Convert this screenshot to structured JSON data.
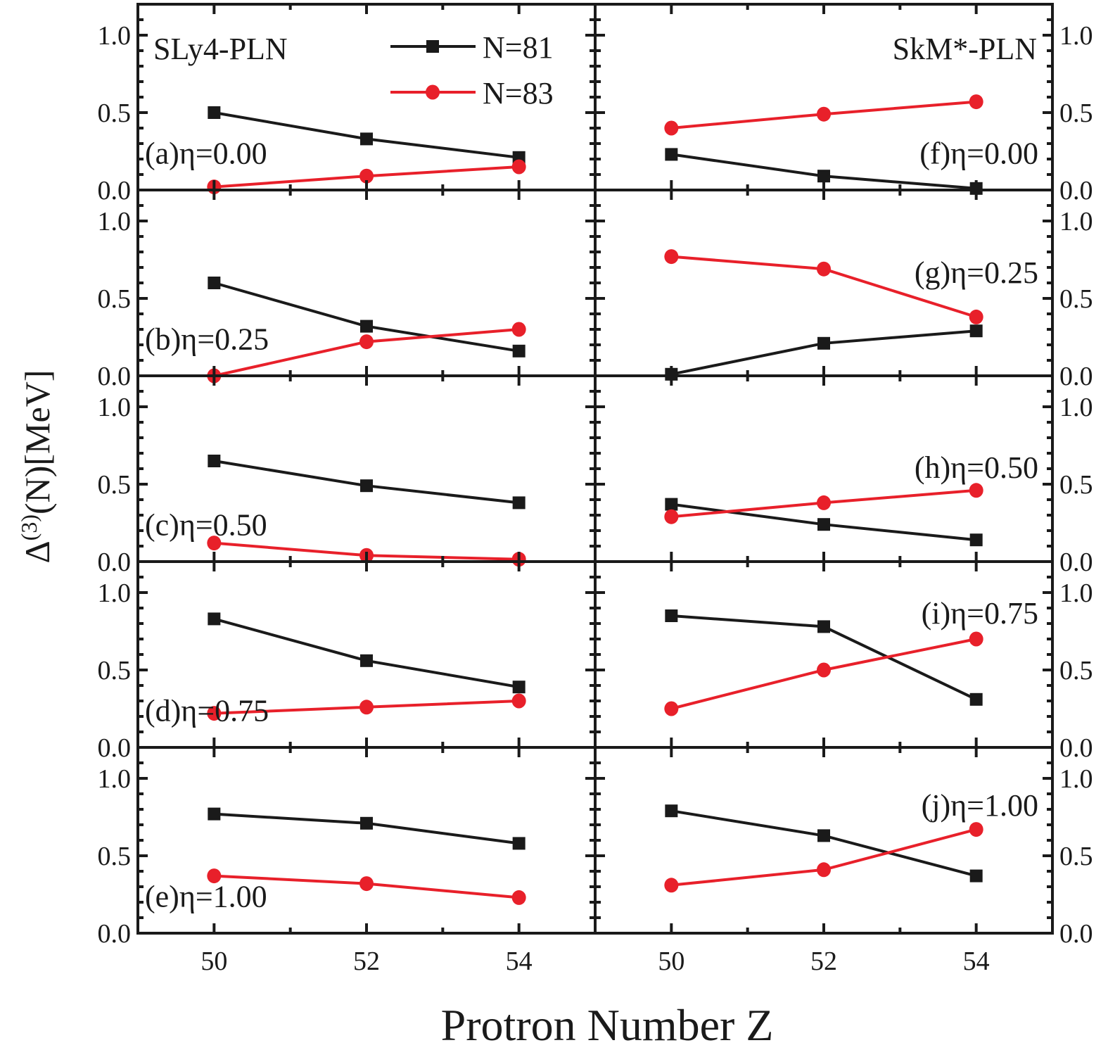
{
  "chart_data": {
    "type": "line",
    "xlabel": "Protron Number Z",
    "ylabel": {
      "main": "Δ",
      "superscript": "(3)",
      "rest": "(N)[MeV]"
    },
    "xlim": [
      49,
      55
    ],
    "ylim": [
      0,
      1.2
    ],
    "x": [
      50,
      52,
      54
    ],
    "x_ticks": [
      50,
      52,
      54
    ],
    "y_ticks": [
      0.0,
      0.5,
      1.0
    ],
    "y_tick_labels": [
      "0.0",
      "0.5",
      "1.0"
    ],
    "grid": false,
    "legend": {
      "placement": "top-right of left column",
      "entries": [
        {
          "name": "N=81",
          "marker": "square",
          "color": "#1a1a1a"
        },
        {
          "name": "N=83",
          "marker": "circle",
          "color": "#e8202a"
        }
      ]
    },
    "columns": [
      {
        "model": "SLy4-PLN",
        "model_label_position": "top-left",
        "y_axis_side": "left"
      },
      {
        "model": "SkM*-PLN",
        "model_label_position": "top-right",
        "y_axis_side": "right"
      }
    ],
    "panels": [
      {
        "id": "a",
        "label": "(a)η=0.00",
        "column": 0,
        "row": 0,
        "label_position": "left",
        "series": [
          {
            "name": "N=81",
            "values": [
              0.5,
              0.33,
              0.21
            ]
          },
          {
            "name": "N=83",
            "values": [
              0.02,
              0.09,
              0.15
            ]
          }
        ]
      },
      {
        "id": "b",
        "label": "(b)η=0.25",
        "column": 0,
        "row": 1,
        "label_position": "left",
        "series": [
          {
            "name": "N=81",
            "values": [
              0.6,
              0.32,
              0.16
            ]
          },
          {
            "name": "N=83",
            "values": [
              0.0,
              0.22,
              0.3
            ]
          }
        ]
      },
      {
        "id": "c",
        "label": "(c)η=0.50",
        "column": 0,
        "row": 2,
        "label_position": "left",
        "series": [
          {
            "name": "N=81",
            "values": [
              0.65,
              0.49,
              0.38
            ]
          },
          {
            "name": "N=83",
            "values": [
              0.12,
              0.04,
              0.015
            ]
          }
        ]
      },
      {
        "id": "d",
        "label": "(d)η=0.75",
        "column": 0,
        "row": 3,
        "label_position": "left",
        "series": [
          {
            "name": "N=81",
            "values": [
              0.83,
              0.56,
              0.39
            ]
          },
          {
            "name": "N=83",
            "values": [
              0.22,
              0.26,
              0.3
            ]
          }
        ]
      },
      {
        "id": "e",
        "label": "(e)η=1.00",
        "column": 0,
        "row": 4,
        "label_position": "left",
        "series": [
          {
            "name": "N=81",
            "values": [
              0.77,
              0.71,
              0.58
            ]
          },
          {
            "name": "N=83",
            "values": [
              0.37,
              0.32,
              0.23
            ]
          }
        ]
      },
      {
        "id": "f",
        "label": "(f)η=0.00",
        "column": 1,
        "row": 0,
        "label_position": "right",
        "series": [
          {
            "name": "N=81",
            "values": [
              0.23,
              0.09,
              0.01
            ]
          },
          {
            "name": "N=83",
            "values": [
              0.4,
              0.49,
              0.57
            ]
          }
        ]
      },
      {
        "id": "g",
        "label": "(g)η=0.25",
        "column": 1,
        "row": 1,
        "label_position": "right",
        "series": [
          {
            "name": "N=81",
            "values": [
              0.01,
              0.21,
              0.29
            ]
          },
          {
            "name": "N=83",
            "values": [
              0.77,
              0.69,
              0.38
            ]
          }
        ]
      },
      {
        "id": "h",
        "label": "(h)η=0.50",
        "column": 1,
        "row": 2,
        "label_position": "right",
        "series": [
          {
            "name": "N=81",
            "values": [
              0.37,
              0.24,
              0.14
            ]
          },
          {
            "name": "N=83",
            "values": [
              0.29,
              0.38,
              0.46
            ]
          }
        ]
      },
      {
        "id": "i",
        "label": "(i)η=0.75",
        "column": 1,
        "row": 3,
        "label_position": "right",
        "series": [
          {
            "name": "N=81",
            "values": [
              0.85,
              0.78,
              0.31
            ]
          },
          {
            "name": "N=83",
            "values": [
              0.25,
              0.5,
              0.7
            ]
          }
        ]
      },
      {
        "id": "j",
        "label": "(j)η=1.00",
        "column": 1,
        "row": 4,
        "label_position": "right",
        "series": [
          {
            "name": "N=81",
            "values": [
              0.79,
              0.63,
              0.37
            ]
          },
          {
            "name": "N=83",
            "values": [
              0.31,
              0.41,
              0.67
            ]
          }
        ]
      }
    ]
  }
}
